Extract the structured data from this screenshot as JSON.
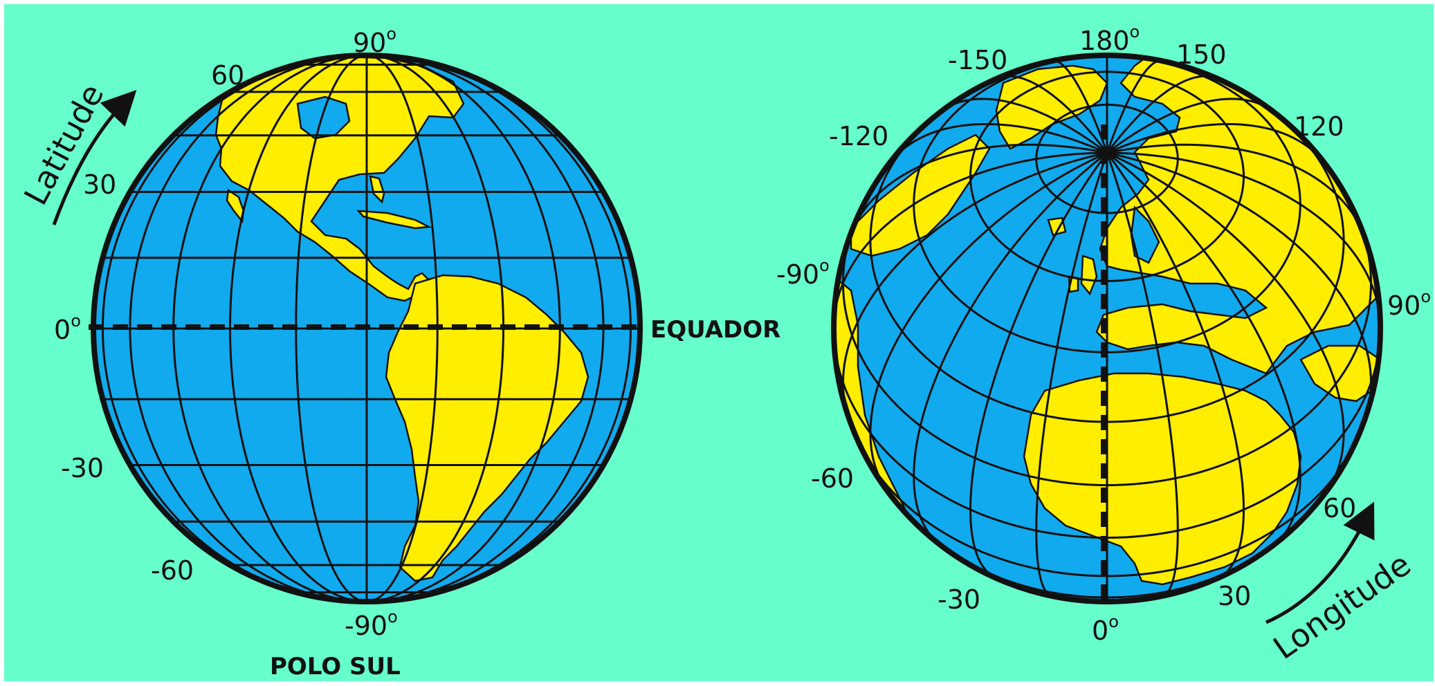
{
  "colors": {
    "background": "#66ffcc",
    "ocean": "#11aaee",
    "land": "#ffee00",
    "grid": "#111111"
  },
  "left_globe": {
    "latitude_labels": [
      {
        "value": "90",
        "deg": "o"
      },
      {
        "value": "60",
        "deg": ""
      },
      {
        "value": "30",
        "deg": ""
      },
      {
        "value": "0",
        "deg": "o"
      },
      {
        "value": "-30",
        "deg": ""
      },
      {
        "value": "-60",
        "deg": ""
      },
      {
        "value": "-90",
        "deg": "o"
      }
    ],
    "arrow_label": "Latitude",
    "equator_label": "EQUADOR",
    "south_pole_label": "POLO SUL"
  },
  "right_globe": {
    "longitude_labels": [
      {
        "value": "180",
        "deg": "o"
      },
      {
        "value": "-150",
        "deg": ""
      },
      {
        "value": "150",
        "deg": ""
      },
      {
        "value": "-120",
        "deg": ""
      },
      {
        "value": "120",
        "deg": ""
      },
      {
        "value": "-90",
        "deg": "o"
      },
      {
        "value": "90",
        "deg": "o"
      },
      {
        "value": "-60",
        "deg": ""
      },
      {
        "value": "60",
        "deg": ""
      },
      {
        "value": "-30",
        "deg": ""
      },
      {
        "value": "30",
        "deg": ""
      },
      {
        "value": "0",
        "deg": "o"
      }
    ],
    "arrow_label": "Longitude"
  }
}
